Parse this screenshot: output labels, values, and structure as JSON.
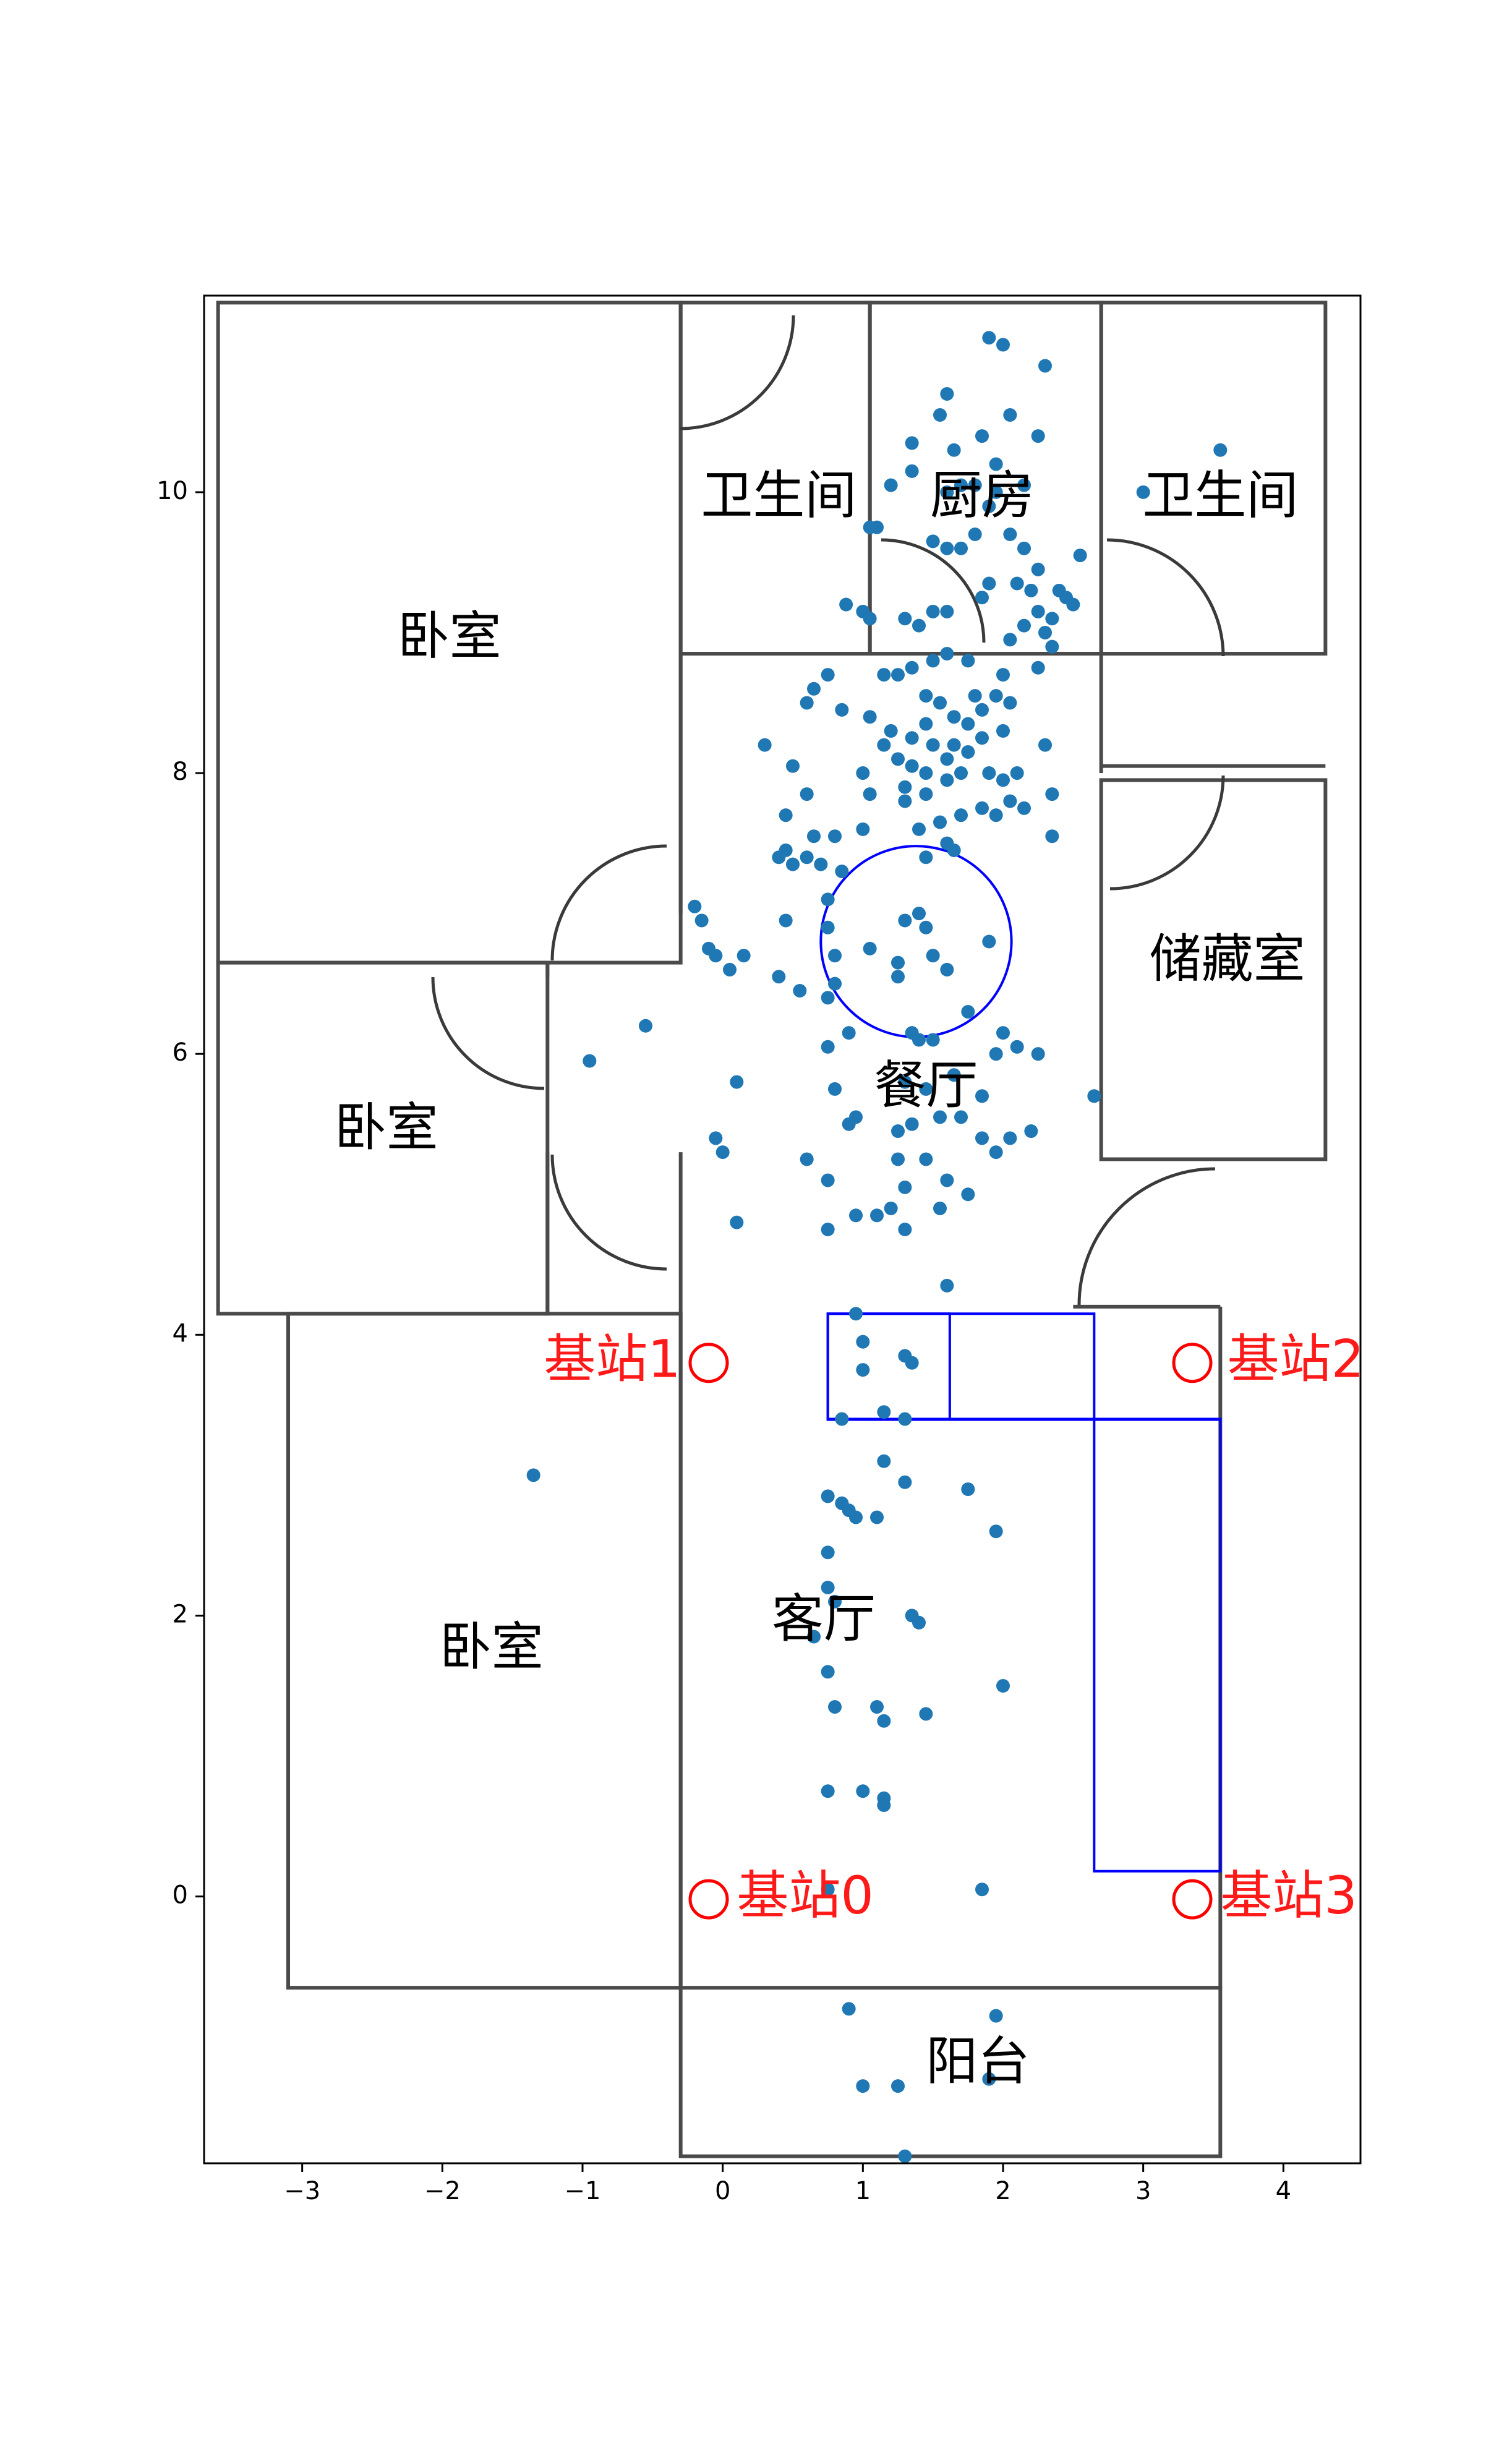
{
  "chart_data": {
    "type": "scatter",
    "title": "",
    "xlabel": "",
    "ylabel": "",
    "xlim": [
      -3.7,
      4.55
    ],
    "ylim": [
      -1.9,
      11.4
    ],
    "grid": false,
    "x_ticks": [
      -3,
      -2,
      -1,
      0,
      1,
      2,
      3,
      4
    ],
    "y_ticks": [
      0,
      2,
      4,
      6,
      8,
      10
    ],
    "x_tick_labels": [
      "−3",
      "−2",
      "−1",
      "0",
      "1",
      "2",
      "3",
      "4"
    ],
    "y_tick_labels": [
      "0",
      "2",
      "4",
      "6",
      "8",
      "10"
    ],
    "point_color": "#1f77b4",
    "station_color": "#ff0000",
    "furniture_color": "#0000ff",
    "wall_color": "#4a4a4a",
    "rooms": [
      {
        "label": "卧室",
        "x": -1.95,
        "y": 8.95
      },
      {
        "label": "卧室",
        "x": -2.4,
        "y": 5.45
      },
      {
        "label": "卧室",
        "x": -1.65,
        "y": 1.75
      },
      {
        "label": "卫生间",
        "x": 0.4,
        "y": 9.95
      },
      {
        "label": "厨房",
        "x": 1.85,
        "y": 9.95
      },
      {
        "label": "卫生间",
        "x": 3.55,
        "y": 9.95
      },
      {
        "label": "储藏室",
        "x": 3.6,
        "y": 6.65
      },
      {
        "label": "餐厅",
        "x": 1.45,
        "y": 5.75
      },
      {
        "label": "客厅",
        "x": 0.72,
        "y": 1.95
      },
      {
        "label": "阳台",
        "x": 1.82,
        "y": -1.2
      }
    ],
    "stations": [
      {
        "label": "基站0",
        "x": -0.1,
        "y": -0.02,
        "label_x": 0.1,
        "label_y": -0.02
      },
      {
        "label": "基站1",
        "x": -0.1,
        "y": 3.8,
        "label_x": -0.3,
        "label_y": 3.8
      },
      {
        "label": "基站2",
        "x": 3.35,
        "y": 3.8,
        "label_x": 3.6,
        "label_y": 3.8
      },
      {
        "label": "基站3",
        "x": 3.35,
        "y": -0.02,
        "label_x": 3.55,
        "label_y": -0.02
      }
    ],
    "furniture": {
      "circle": {
        "cx": 1.38,
        "cy": 6.8,
        "r": 0.68
      },
      "rects": [
        {
          "x0": 0.75,
          "y0": 3.4,
          "x1": 2.65,
          "y1": 4.15
        },
        {
          "x0": 0.75,
          "y0": 3.4,
          "x1": 1.62,
          "y1": 4.15
        },
        {
          "x0": 0.75,
          "y0": 3.4,
          "x1": 3.55,
          "y1": 3.4
        },
        {
          "x0": 2.65,
          "y0": 0.18,
          "x1": 3.55,
          "y1": 3.4
        }
      ]
    },
    "walls": {
      "rects": [
        [
          -3.6,
          6.65,
          -0.3,
          11.35
        ],
        [
          -0.3,
          8.85,
          1.05,
          11.35
        ],
        [
          1.05,
          8.85,
          2.7,
          11.35
        ],
        [
          2.7,
          8.85,
          4.3,
          11.35
        ],
        [
          -3.6,
          4.15,
          -1.25,
          6.65
        ],
        [
          2.7,
          5.25,
          4.3,
          7.95
        ],
        [
          -3.1,
          -0.65,
          -0.3,
          4.15
        ],
        [
          -0.3,
          -1.85,
          3.55,
          -0.65
        ]
      ],
      "lines": [
        [
          -0.3,
          8.85,
          -0.3,
          7.0
        ],
        [
          -0.3,
          5.3,
          -0.3,
          4.15
        ],
        [
          -0.3,
          4.15,
          -0.3,
          -0.65
        ],
        [
          -1.25,
          6.65,
          -1.25,
          6.55
        ],
        [
          -1.25,
          5.3,
          -1.25,
          4.15
        ],
        [
          2.7,
          8.85,
          2.7,
          8.0
        ],
        [
          2.7,
          8.05,
          4.3,
          8.05
        ],
        [
          3.55,
          4.2,
          3.55,
          -0.65
        ],
        [
          2.5,
          4.2,
          3.55,
          4.2
        ]
      ]
    },
    "points": [
      [
        1.9,
        11.1
      ],
      [
        2.0,
        11.05
      ],
      [
        2.3,
        10.9
      ],
      [
        1.6,
        10.7
      ],
      [
        1.55,
        10.55
      ],
      [
        2.05,
        10.55
      ],
      [
        1.65,
        10.3
      ],
      [
        1.85,
        10.4
      ],
      [
        2.25,
        10.4
      ],
      [
        1.35,
        10.15
      ],
      [
        1.35,
        10.35
      ],
      [
        1.8,
        10.05
      ],
      [
        1.7,
        10.05
      ],
      [
        1.95,
        10.0
      ],
      [
        2.15,
        10.05
      ],
      [
        1.6,
        10.0
      ],
      [
        1.95,
        10.2
      ],
      [
        1.9,
        9.9
      ],
      [
        1.2,
        10.05
      ],
      [
        1.05,
        9.75
      ],
      [
        1.1,
        9.75
      ],
      [
        1.5,
        9.65
      ],
      [
        1.6,
        9.6
      ],
      [
        1.7,
        9.6
      ],
      [
        1.8,
        9.7
      ],
      [
        2.05,
        9.7
      ],
      [
        2.15,
        9.6
      ],
      [
        2.25,
        9.45
      ],
      [
        2.55,
        9.55
      ],
      [
        1.9,
        9.35
      ],
      [
        1.85,
        9.25
      ],
      [
        2.1,
        9.35
      ],
      [
        2.2,
        9.3
      ],
      [
        2.4,
        9.3
      ],
      [
        2.45,
        9.25
      ],
      [
        2.5,
        9.2
      ],
      [
        2.25,
        9.15
      ],
      [
        2.35,
        9.1
      ],
      [
        2.3,
        9.0
      ],
      [
        2.15,
        9.05
      ],
      [
        2.05,
        8.95
      ],
      [
        1.6,
        9.15
      ],
      [
        1.5,
        9.15
      ],
      [
        1.3,
        9.1
      ],
      [
        1.4,
        9.05
      ],
      [
        0.88,
        9.2
      ],
      [
        1.0,
        9.15
      ],
      [
        1.05,
        9.1
      ],
      [
        2.35,
        8.9
      ],
      [
        2.25,
        8.75
      ],
      [
        2.0,
        8.7
      ],
      [
        1.75,
        8.8
      ],
      [
        1.6,
        8.85
      ],
      [
        1.5,
        8.8
      ],
      [
        1.35,
        8.75
      ],
      [
        1.25,
        8.7
      ],
      [
        1.45,
        8.55
      ],
      [
        1.55,
        8.5
      ],
      [
        1.8,
        8.55
      ],
      [
        1.95,
        8.55
      ],
      [
        1.65,
        8.4
      ],
      [
        1.75,
        8.35
      ],
      [
        1.85,
        8.45
      ],
      [
        2.05,
        8.5
      ],
      [
        1.45,
        8.35
      ],
      [
        1.35,
        8.25
      ],
      [
        1.2,
        8.3
      ],
      [
        1.15,
        8.2
      ],
      [
        1.25,
        8.1
      ],
      [
        1.5,
        8.2
      ],
      [
        1.65,
        8.2
      ],
      [
        1.75,
        8.15
      ],
      [
        1.85,
        8.25
      ],
      [
        2.0,
        8.3
      ],
      [
        1.7,
        8.0
      ],
      [
        1.6,
        8.1
      ],
      [
        1.45,
        8.0
      ],
      [
        1.35,
        8.05
      ],
      [
        1.3,
        7.9
      ],
      [
        1.3,
        7.8
      ],
      [
        1.45,
        7.85
      ],
      [
        1.6,
        7.95
      ],
      [
        1.9,
        8.0
      ],
      [
        2.0,
        7.95
      ],
      [
        2.1,
        8.0
      ],
      [
        2.3,
        8.2
      ],
      [
        1.7,
        7.7
      ],
      [
        1.85,
        7.75
      ],
      [
        1.95,
        7.7
      ],
      [
        2.05,
        7.8
      ],
      [
        2.15,
        7.75
      ],
      [
        1.55,
        7.65
      ],
      [
        1.4,
        7.6
      ],
      [
        1.6,
        7.5
      ],
      [
        1.65,
        7.45
      ],
      [
        1.45,
        7.4
      ],
      [
        2.35,
        7.55
      ],
      [
        2.35,
        7.85
      ],
      [
        1.05,
        7.85
      ],
      [
        1.0,
        7.6
      ],
      [
        0.8,
        7.55
      ],
      [
        0.65,
        7.55
      ],
      [
        0.6,
        7.4
      ],
      [
        0.4,
        7.4
      ],
      [
        0.45,
        7.45
      ],
      [
        0.5,
        7.35
      ],
      [
        0.7,
        7.35
      ],
      [
        0.85,
        7.3
      ],
      [
        0.3,
        8.2
      ],
      [
        0.5,
        8.05
      ],
      [
        0.6,
        7.85
      ],
      [
        0.45,
        7.7
      ],
      [
        0.75,
        8.7
      ],
      [
        0.65,
        8.6
      ],
      [
        0.6,
        8.5
      ],
      [
        0.85,
        8.45
      ],
      [
        1.05,
        8.4
      ],
      [
        1.15,
        8.7
      ],
      [
        1.0,
        8.0
      ],
      [
        0.75,
        7.1
      ],
      [
        0.75,
        6.9
      ],
      [
        0.45,
        6.95
      ],
      [
        0.8,
        6.7
      ],
      [
        1.05,
        6.75
      ],
      [
        1.3,
        6.95
      ],
      [
        1.4,
        7.0
      ],
      [
        1.45,
        6.9
      ],
      [
        1.5,
        6.7
      ],
      [
        1.25,
        6.65
      ],
      [
        1.6,
        6.6
      ],
      [
        1.35,
        6.15
      ],
      [
        1.4,
        6.1
      ],
      [
        1.5,
        6.1
      ],
      [
        1.25,
        6.55
      ],
      [
        0.9,
        6.15
      ],
      [
        0.75,
        6.4
      ],
      [
        0.8,
        6.5
      ],
      [
        1.9,
        6.8
      ],
      [
        1.75,
        6.3
      ],
      [
        2.0,
        6.15
      ],
      [
        0.4,
        6.55
      ],
      [
        0.55,
        6.45
      ],
      [
        0.15,
        6.7
      ],
      [
        0.05,
        6.6
      ],
      [
        -0.05,
        6.7
      ],
      [
        -0.15,
        6.95
      ],
      [
        -0.2,
        7.05
      ],
      [
        -0.1,
        6.75
      ],
      [
        -0.55,
        6.2
      ],
      [
        -0.95,
        5.95
      ],
      [
        0.1,
        5.8
      ],
      [
        0.75,
        6.05
      ],
      [
        0.8,
        5.75
      ],
      [
        0.9,
        5.5
      ],
      [
        0.95,
        5.55
      ],
      [
        1.25,
        5.45
      ],
      [
        1.35,
        5.5
      ],
      [
        1.3,
        5.8
      ],
      [
        1.45,
        5.75
      ],
      [
        1.55,
        5.55
      ],
      [
        1.65,
        5.85
      ],
      [
        1.85,
        5.7
      ],
      [
        1.95,
        6.0
      ],
      [
        2.1,
        6.05
      ],
      [
        2.25,
        6.0
      ],
      [
        2.65,
        5.7
      ],
      [
        1.7,
        5.55
      ],
      [
        1.85,
        5.4
      ],
      [
        2.05,
        5.4
      ],
      [
        2.2,
        5.45
      ],
      [
        1.25,
        5.25
      ],
      [
        1.6,
        5.1
      ],
      [
        1.75,
        5.0
      ],
      [
        1.95,
        5.3
      ],
      [
        0.6,
        5.25
      ],
      [
        0.75,
        5.1
      ],
      [
        1.3,
        5.05
      ],
      [
        1.45,
        5.25
      ],
      [
        1.55,
        4.9
      ],
      [
        1.2,
        4.9
      ],
      [
        1.1,
        4.85
      ],
      [
        0.95,
        4.85
      ],
      [
        1.3,
        4.75
      ],
      [
        0.75,
        4.75
      ],
      [
        -0.05,
        5.4
      ],
      [
        0.0,
        5.3
      ],
      [
        0.1,
        4.8
      ],
      [
        1.6,
        4.35
      ],
      [
        0.95,
        4.15
      ],
      [
        1.0,
        3.95
      ],
      [
        1.3,
        3.85
      ],
      [
        1.35,
        3.8
      ],
      [
        1.0,
        3.75
      ],
      [
        0.85,
        3.4
      ],
      [
        1.15,
        3.45
      ],
      [
        1.3,
        3.4
      ],
      [
        1.15,
        3.1
      ],
      [
        1.3,
        2.95
      ],
      [
        1.75,
        2.9
      ],
      [
        0.75,
        2.85
      ],
      [
        0.85,
        2.8
      ],
      [
        0.9,
        2.75
      ],
      [
        0.95,
        2.7
      ],
      [
        1.1,
        2.7
      ],
      [
        0.85,
        2.8
      ],
      [
        1.95,
        2.6
      ],
      [
        0.75,
        2.45
      ],
      [
        0.75,
        2.2
      ],
      [
        0.8,
        2.1
      ],
      [
        1.35,
        2.0
      ],
      [
        1.4,
        1.95
      ],
      [
        0.65,
        1.85
      ],
      [
        0.75,
        1.6
      ],
      [
        0.8,
        1.35
      ],
      [
        1.1,
        1.35
      ],
      [
        1.15,
        1.25
      ],
      [
        1.45,
        1.3
      ],
      [
        2.0,
        1.5
      ],
      [
        0.75,
        0.75
      ],
      [
        1.0,
        0.75
      ],
      [
        1.15,
        0.7
      ],
      [
        1.15,
        0.65
      ],
      [
        1.85,
        0.05
      ],
      [
        0.75,
        0.05
      ],
      [
        -1.35,
        3.0
      ],
      [
        0.9,
        -0.8
      ],
      [
        1.95,
        -0.85
      ],
      [
        1.0,
        -1.35
      ],
      [
        1.25,
        -1.35
      ],
      [
        1.9,
        -1.3
      ],
      [
        1.3,
        -1.85
      ],
      [
        3.0,
        10.0
      ],
      [
        3.55,
        10.3
      ]
    ]
  }
}
